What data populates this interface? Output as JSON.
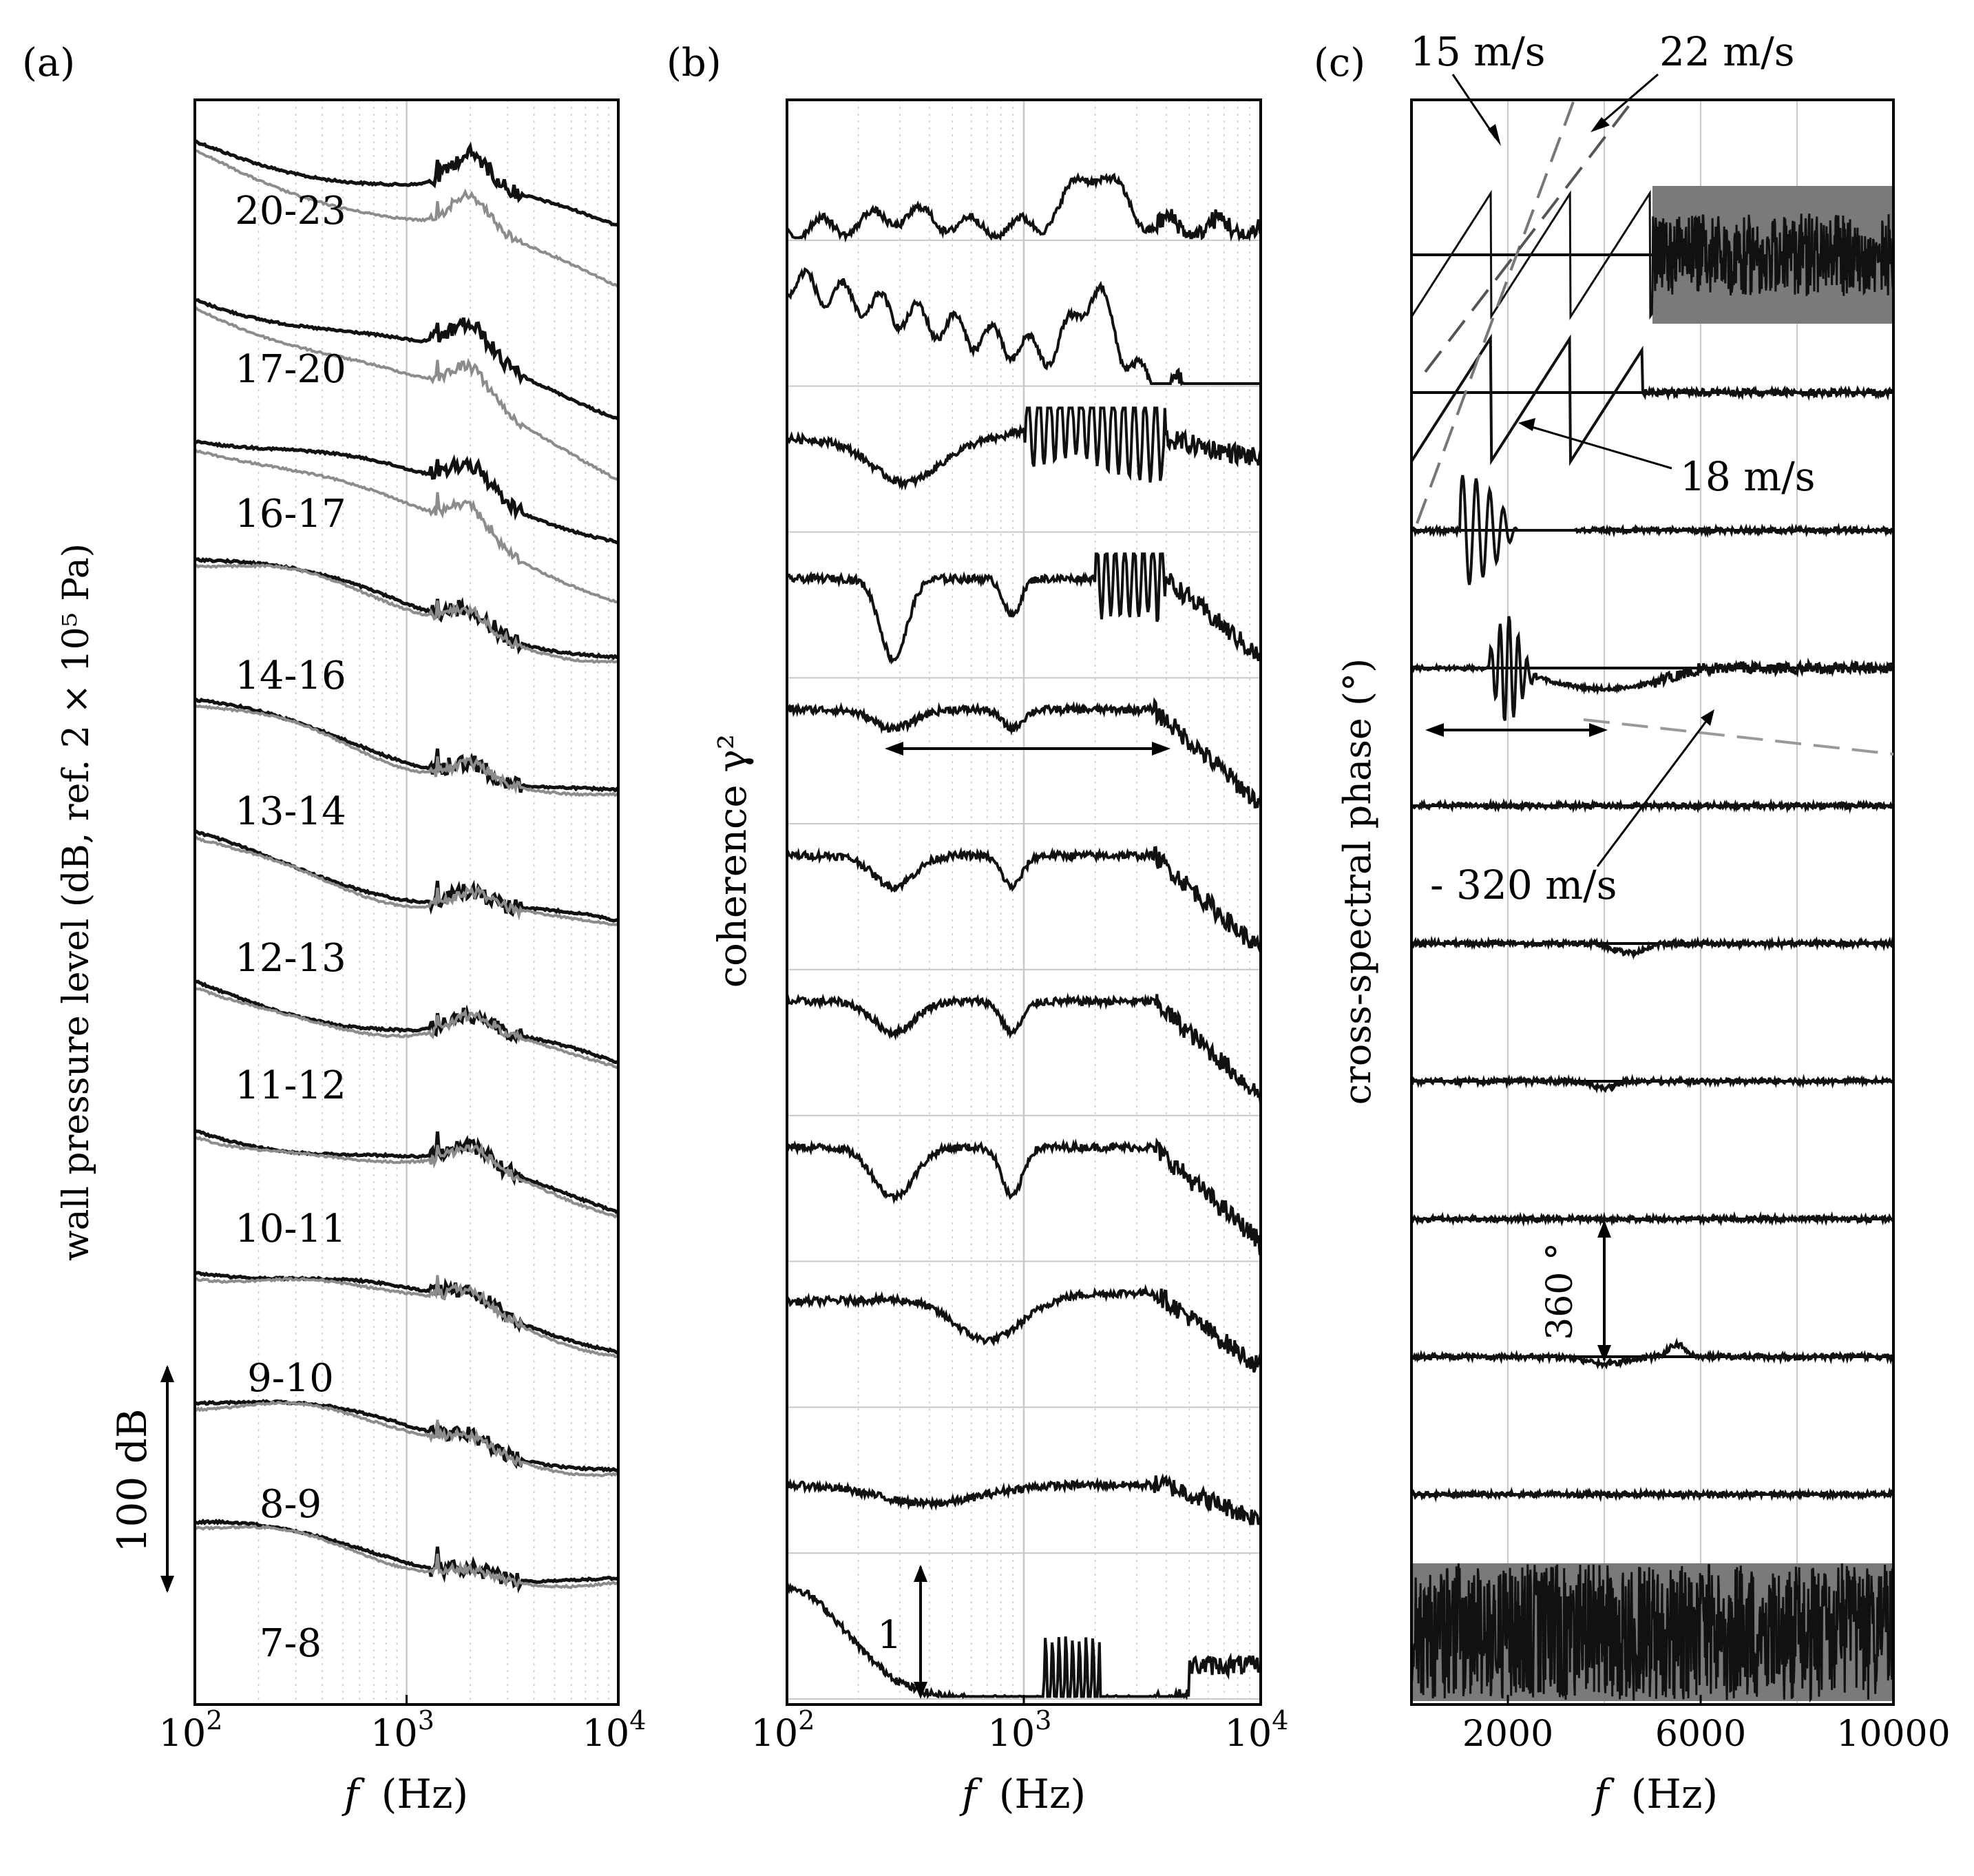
{
  "colors": {
    "dark": "#111111",
    "light": "#8c8c8c",
    "grid": "#c8c8c8",
    "frame": "#000000",
    "fill_gray": "#7a7a7a"
  },
  "chart_data": [
    {
      "id": "a",
      "type": "line",
      "panel_label": "(a)",
      "ylabel": "wall pressure level (dB, ref. 2 × 10⁵ Pa)",
      "xlabel_var": "f",
      "xlabel_unit": "(Hz)",
      "xscale": "log",
      "xlim": [
        100,
        10000
      ],
      "xticks": [
        {
          "base": "10",
          "exp": "2"
        },
        {
          "base": "10",
          "exp": "3"
        },
        {
          "base": "10",
          "exp": "4"
        }
      ],
      "scale_bar_label": "100 dB",
      "scale_bar_db": 100,
      "series_note": "pairs of wall pressure spectra (dark and light) per sensor pair, offset vertically",
      "rows": [
        {
          "label": "20-23"
        },
        {
          "label": "17-20"
        },
        {
          "label": "16-17"
        },
        {
          "label": "14-16"
        },
        {
          "label": "13-14"
        },
        {
          "label": "12-13"
        },
        {
          "label": "11-12"
        },
        {
          "label": "10-11"
        },
        {
          "label": "9-10"
        },
        {
          "label": "8-9"
        },
        {
          "label": "7-8"
        }
      ]
    },
    {
      "id": "b",
      "type": "line",
      "panel_label": "(b)",
      "ylabel": "coherence γ²",
      "xlabel_var": "f",
      "xlabel_unit": "(Hz)",
      "xscale": "log",
      "xlim": [
        100,
        10000
      ],
      "xticks": [
        {
          "base": "10",
          "exp": "2"
        },
        {
          "base": "10",
          "exp": "3"
        },
        {
          "base": "10",
          "exp": "4"
        }
      ],
      "scale_bar_label": "1",
      "scale_bar_value": 1,
      "band_arrow_hz": [
        300,
        4000
      ],
      "rows": 11
    },
    {
      "id": "c",
      "type": "line",
      "panel_label": "(c)",
      "ylabel": "cross-spectral phase (°)",
      "xlabel_var": "f",
      "xlabel_unit": "(Hz)",
      "xscale": "linear",
      "xlim": [
        0,
        10000
      ],
      "xticks": [
        {
          "value": 2000,
          "label": "2000"
        },
        {
          "value": 6000,
          "label": "6000"
        },
        {
          "value": 10000,
          "label": "10000"
        }
      ],
      "scale_bar_label": "360 °",
      "scale_bar_deg": 360,
      "annotations": [
        {
          "text": "15 m/s",
          "speed_mps": 15
        },
        {
          "text": "22 m/s",
          "speed_mps": 22
        },
        {
          "text": "18 m/s",
          "speed_mps": 18
        },
        {
          "text": "- 320 m/s",
          "speed_mps": -320
        }
      ],
      "band_arrow_hz": [
        0,
        4000
      ],
      "rows": 11
    }
  ]
}
